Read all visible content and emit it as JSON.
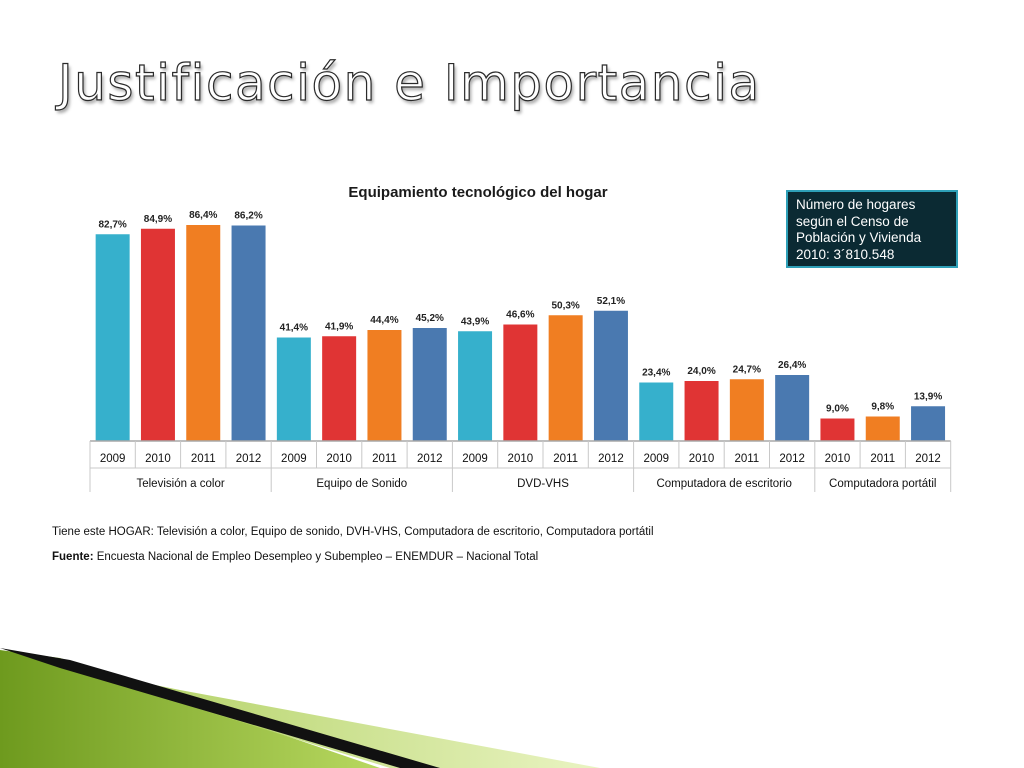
{
  "slide": {
    "title": "Justificación e Importancia"
  },
  "info_box": {
    "lines": [
      "Número de hogares",
      "según  el Censo de",
      "Población y Vivienda",
      "2010: 3´810.548"
    ]
  },
  "footnotes": {
    "note_label": "Tiene este HOGAR:",
    "note_text": "Televisión a color, Equipo de sonido, DVH-VHS, Computadora de escritorio, Computadora portátil",
    "source_label": "Fuente:",
    "source_text": "Encuesta Nacional de Empleo Desempleo y Subempleo – ENEMDUR – Nacional  Total"
  },
  "colors": {
    "2009": "#36b0cc",
    "2010": "#e03434",
    "2011": "#f07e22",
    "2012": "#4a79b0"
  },
  "chart_data": {
    "type": "bar",
    "title": "Equipamiento tecnológico del hogar",
    "unit": "%",
    "ylim": [
      0,
      100
    ],
    "grid": false,
    "groups": [
      {
        "name": "Televisión a color",
        "bars": [
          {
            "year": "2009",
            "value": 82.7,
            "label": "82,7%"
          },
          {
            "year": "2010",
            "value": 84.9,
            "label": "84,9%"
          },
          {
            "year": "2011",
            "value": 86.4,
            "label": "86,4%"
          },
          {
            "year": "2012",
            "value": 86.2,
            "label": "86,2%"
          }
        ]
      },
      {
        "name": "Equipo de Sonido",
        "bars": [
          {
            "year": "2009",
            "value": 41.4,
            "label": "41,4%"
          },
          {
            "year": "2010",
            "value": 41.9,
            "label": "41,9%"
          },
          {
            "year": "2011",
            "value": 44.4,
            "label": "44,4%"
          },
          {
            "year": "2012",
            "value": 45.2,
            "label": "45,2%"
          }
        ]
      },
      {
        "name": "DVD-VHS",
        "bars": [
          {
            "year": "2009",
            "value": 43.9,
            "label": "43,9%"
          },
          {
            "year": "2010",
            "value": 46.6,
            "label": "46,6%"
          },
          {
            "year": "2011",
            "value": 50.3,
            "label": "50,3%"
          },
          {
            "year": "2012",
            "value": 52.1,
            "label": "52,1%"
          }
        ]
      },
      {
        "name": "Computadora de escritorio",
        "bars": [
          {
            "year": "2009",
            "value": 23.4,
            "label": "23,4%"
          },
          {
            "year": "2010",
            "value": 24.0,
            "label": "24,0%"
          },
          {
            "year": "2011",
            "value": 24.7,
            "label": "24,7%"
          },
          {
            "year": "2012",
            "value": 26.4,
            "label": "26,4%"
          }
        ]
      },
      {
        "name": "Computadora portátil",
        "bars": [
          {
            "year": "2010",
            "value": 9.0,
            "label": "9,0%"
          },
          {
            "year": "2011",
            "value": 9.8,
            "label": "9,8%"
          },
          {
            "year": "2012",
            "value": 13.9,
            "label": "13,9%"
          }
        ]
      }
    ]
  }
}
